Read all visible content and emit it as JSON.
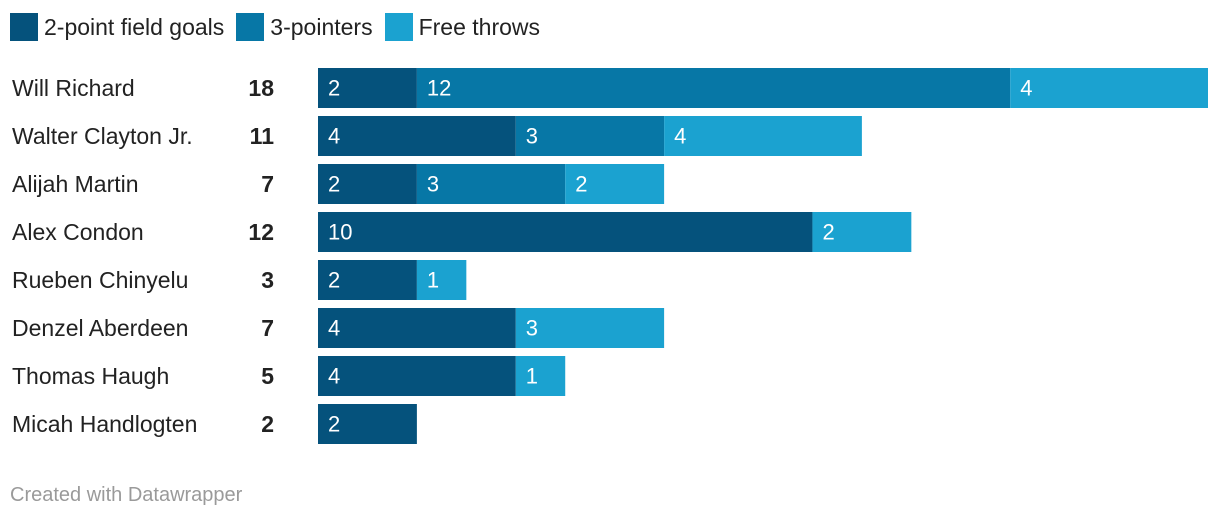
{
  "chart_data": {
    "type": "bar",
    "orientation": "horizontal",
    "stacked": true,
    "categories": [
      "Will Richard",
      "Walter Clayton Jr.",
      "Alijah Martin",
      "Alex Condon",
      "Rueben Chinyelu",
      "Denzel Aberdeen",
      "Thomas Haugh",
      "Micah Handlogten"
    ],
    "totals": [
      18,
      11,
      7,
      12,
      3,
      7,
      5,
      2
    ],
    "series": [
      {
        "name": "2-point field goals",
        "color": "#05527c",
        "values": [
          2,
          4,
          2,
          10,
          2,
          4,
          4,
          2
        ]
      },
      {
        "name": "3-pointers",
        "color": "#0777a6",
        "values": [
          12,
          3,
          3,
          0,
          0,
          0,
          0,
          0
        ]
      },
      {
        "name": "Free throws",
        "color": "#1ba2d0",
        "values": [
          4,
          4,
          2,
          2,
          1,
          3,
          1,
          0
        ]
      }
    ],
    "xlim": [
      0,
      18
    ],
    "legend_position": "top-left",
    "grid": false
  },
  "footer": "Created with Datawrapper"
}
